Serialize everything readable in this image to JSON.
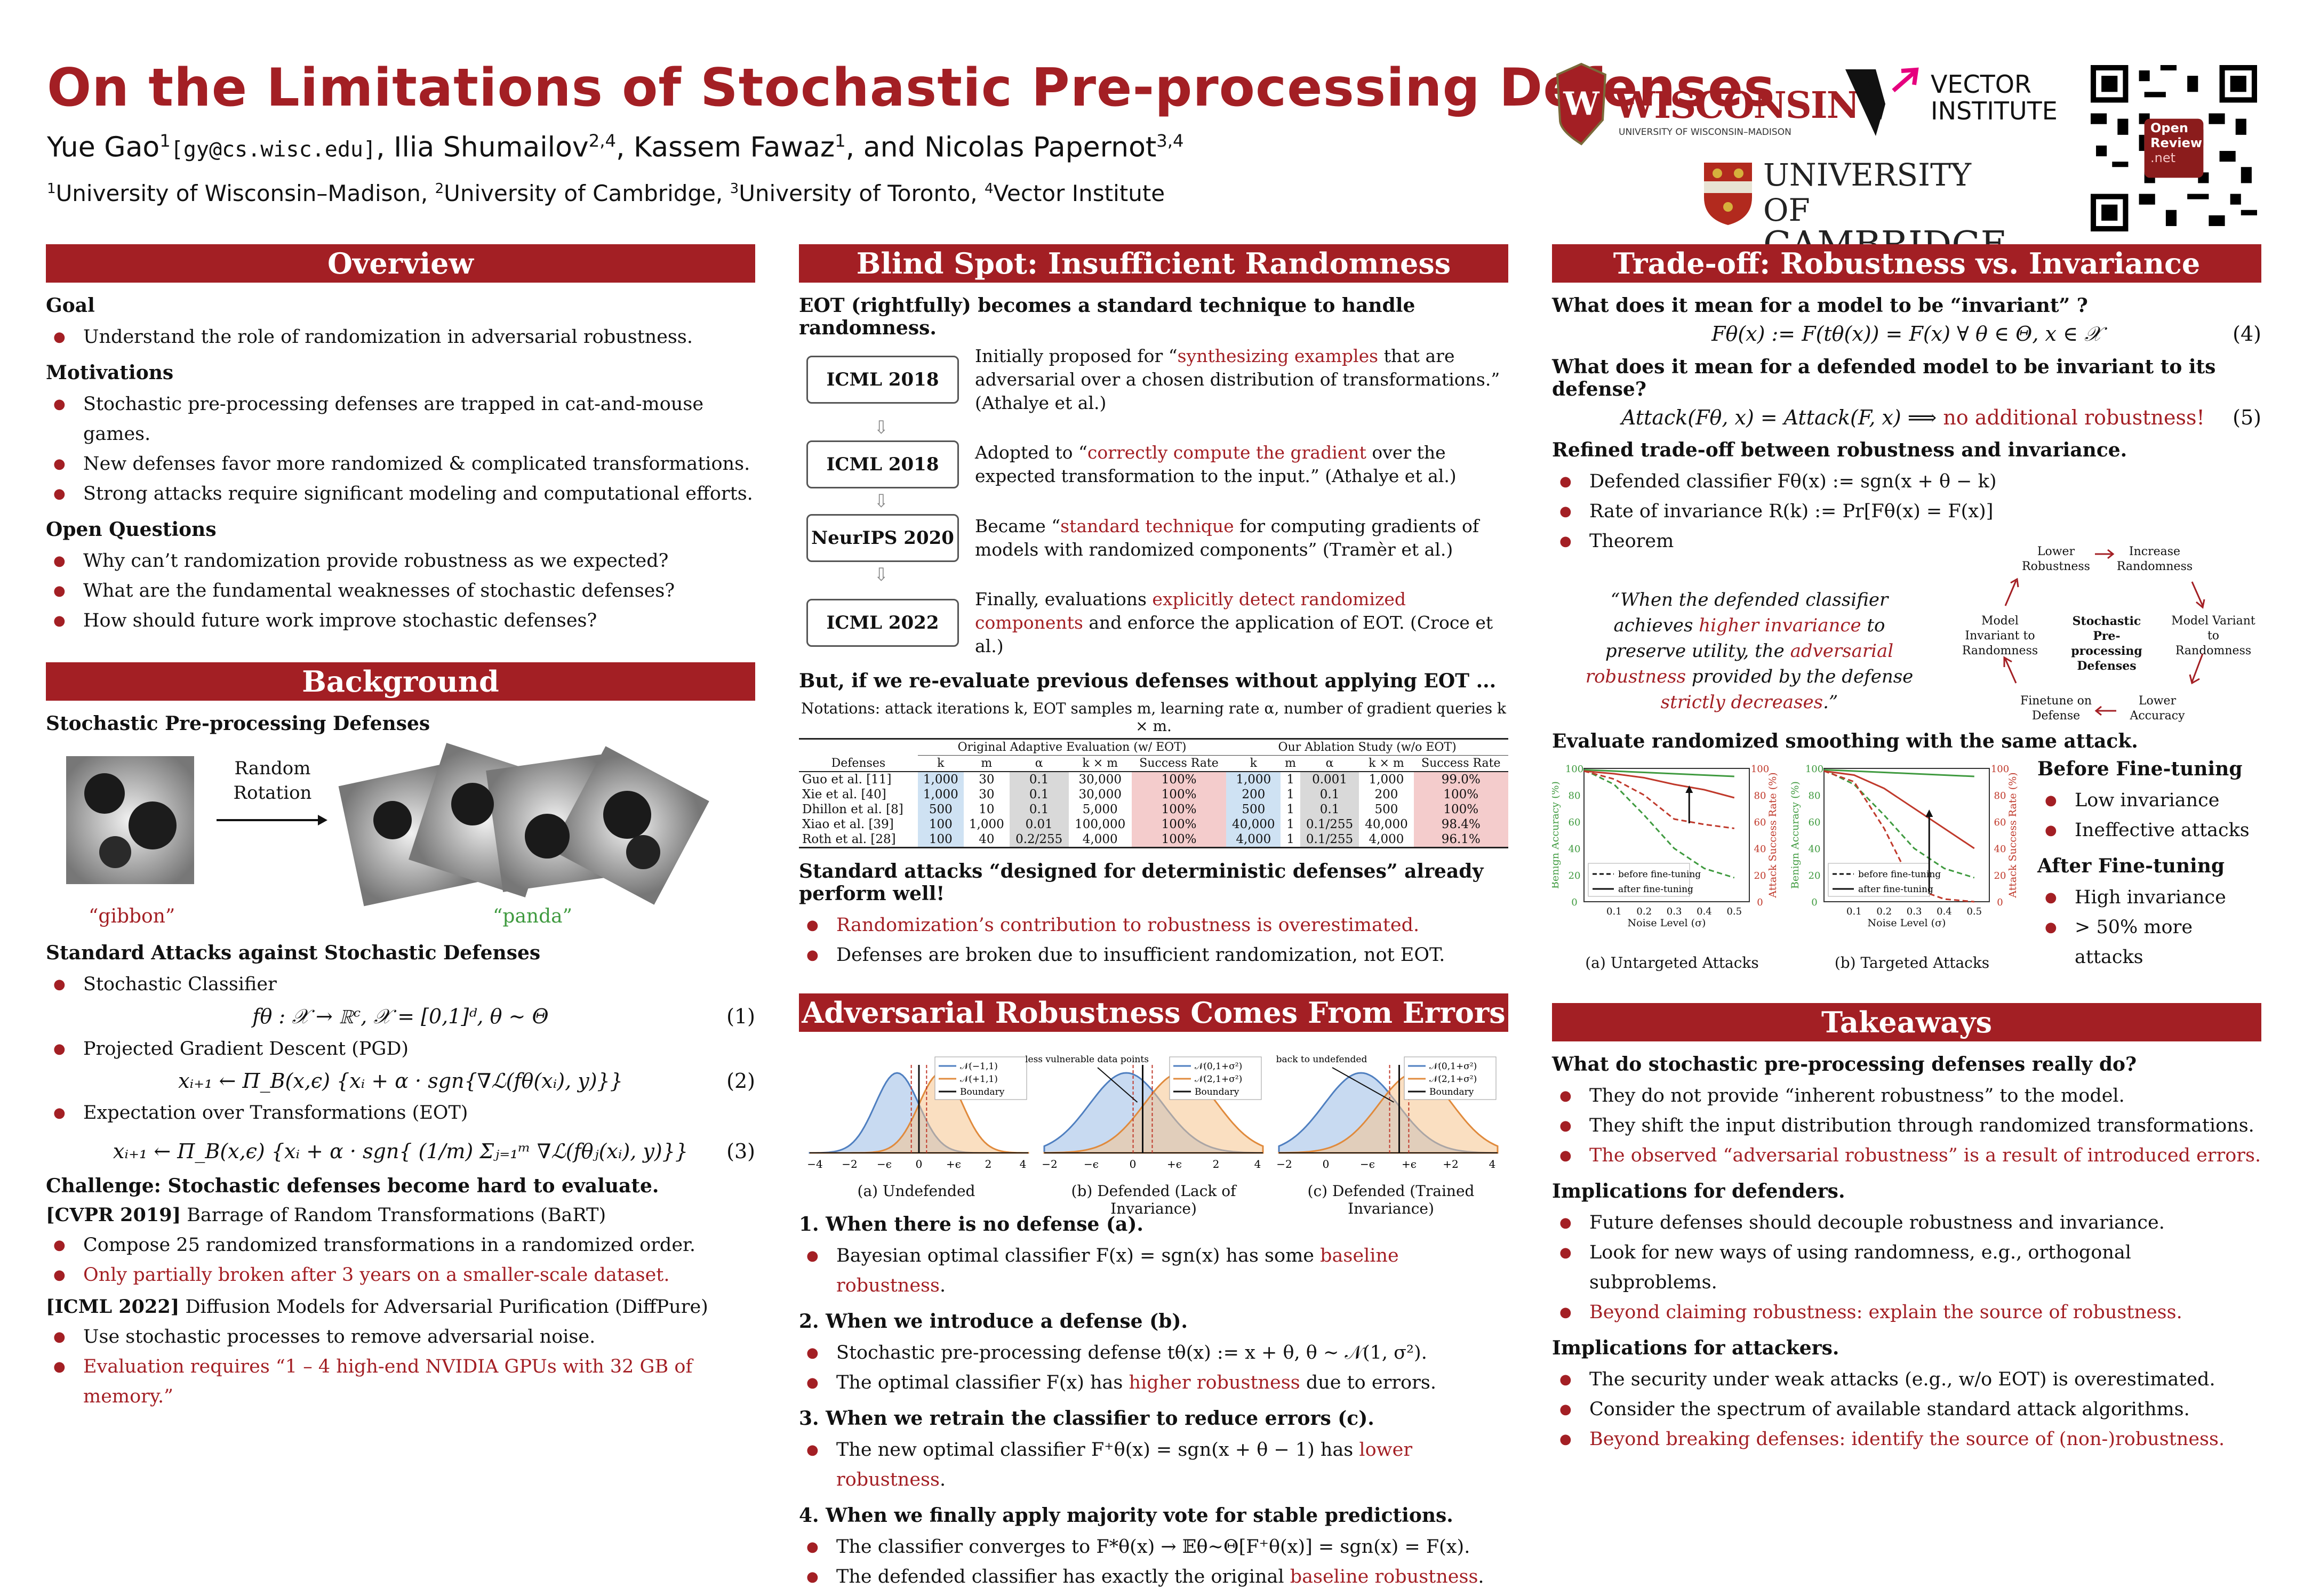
{
  "header": {
    "title": "On the Limitations of Stochastic Pre-processing Defenses",
    "authors": [
      {
        "name": "Yue Gao",
        "sup": "1",
        "email": "[gy@cs.wisc.edu]"
      },
      {
        "name": "Ilia Shumailov",
        "sup": "2,4"
      },
      {
        "name": "Kassem Fawaz",
        "sup": "1"
      },
      {
        "name": "Nicolas Papernot",
        "sup": "3,4"
      }
    ],
    "author_sep": ", ",
    "author_and": "and",
    "affiliations": [
      {
        "sup": "1",
        "name": "University of Wisconsin–Madison"
      },
      {
        "sup": "2",
        "name": "University of Cambridge"
      },
      {
        "sup": "3",
        "name": "University of Toronto"
      },
      {
        "sup": "4",
        "name": "Vector Institute"
      }
    ],
    "logos": {
      "wisconsin": "WISCONSIN",
      "wisconsin_sub": "UNIVERSITY OF WISCONSIN–MADISON",
      "vector_line1": "VECTOR",
      "vector_line2": "INSTITUTE",
      "cambridge_line1": "UNIVERSITY OF",
      "cambridge_line2": "CAMBRIDGE",
      "openreview_line1": "Open",
      "openreview_line2": "Review",
      "openreview_line3": ".net"
    }
  },
  "overview": {
    "title": "Overview",
    "goal_h": "Goal",
    "goal": [
      "Understand the role of randomization in adversarial robustness."
    ],
    "motiv_h": "Motivations",
    "motivations": [
      "Stochastic pre-processing defenses are trapped in cat-and-mouse games.",
      "New defenses favor more randomized & complicated transformations.",
      "Strong attacks require significant modeling and computational efforts."
    ],
    "oq_h": "Open Questions",
    "questions": [
      "Why can’t randomization provide robustness as we expected?",
      "What are the fundamental weaknesses of stochastic defenses?",
      "How should future work improve stochastic defenses?"
    ]
  },
  "background": {
    "title": "Background",
    "spd_h": "Stochastic Pre-processing Defenses",
    "rotation_label": "Random Rotation",
    "gibbon": "“gibbon”",
    "panda": "“panda”",
    "attacks_h": "Standard Attacks against Stochastic Defenses",
    "items": [
      "Stochastic Classifier",
      "Projected Gradient Descent (PGD)",
      "Expectation over Transformations (EOT)"
    ],
    "eq1": "fθ : 𝒳 → ℝᶜ, 𝒳 = [0,1]ᵈ, θ ∼ Θ",
    "eq2": "xᵢ₊₁ ← Π_B(x,ϵ) {xᵢ + α · sgn{∇ℒ(fθ(xᵢ), y)}}",
    "eq3": "xᵢ₊₁ ← Π_B(x,ϵ) {xᵢ + α · sgn{ (1/m) Σⱼ₌₁ᵐ ∇ℒ(fθⱼ(xᵢ), y)}}",
    "eqn": [
      "(1)",
      "(2)",
      "(3)"
    ],
    "challenge": "Challenge: Stochastic defenses become hard to evaluate.",
    "cvpr_tag": "[CVPR 2019]",
    "cvpr_name": "Barrage of Random Transformations (BaRT)",
    "cvpr_items": [
      "Compose 25 randomized transformations in a randomized order."
    ],
    "cvpr_red": "Only partially broken after 3 years on a smaller-scale dataset.",
    "icml_tag": "[ICML 2022]",
    "icml_name": "Diffusion Models for Adversarial Purification (DiffPure)",
    "icml_items": [
      "Use stochastic processes to remove adversarial noise."
    ],
    "icml_red": "Evaluation requires “1 – 4 high-end NVIDIA GPUs with 32 GB of memory.”"
  },
  "blindspot": {
    "title": "Blind Spot: Insufficient Randomness",
    "intro": "EOT (rightfully) becomes a standard technique to handle randomness.",
    "timeline": [
      {
        "venue": "ICML 2018",
        "pre": "Initially proposed for “",
        "red": "synthesizing examples",
        "post": " that are adversarial over a chosen distribution of transformations.” (Athalye et al.)"
      },
      {
        "venue": "ICML 2018",
        "pre": "Adopted to “",
        "red": "correctly compute the gradient",
        "post": " over the expected transformation to the input.” (Athalye et al.)"
      },
      {
        "venue": "NeurIPS 2020",
        "pre": "Became “",
        "red": "standard technique",
        "post": " for computing gradients of models with randomized components” (Tramèr et al.)"
      },
      {
        "venue": "ICML 2022",
        "pre": "Finally, evaluations ",
        "red": "explicitly detect randomized components",
        "post": " and enforce the application of EOT. (Croce et al.)"
      }
    ],
    "reeval": "But, if we re-evaluate previous defenses without applying EOT ...",
    "notation": "Notations: attack iterations k, EOT samples m, learning rate α, number of gradient queries k × m.",
    "table": {
      "group1": "Original Adaptive Evaluation (w/ EOT)",
      "group2": "Our Ablation Study (w/o EOT)",
      "cols": [
        "Defenses",
        "k",
        "m",
        "α",
        "k × m",
        "Success Rate",
        "k",
        "m",
        "α",
        "k × m",
        "Success Rate"
      ],
      "rows": [
        [
          "Guo et al. [11]",
          "1,000",
          "30",
          "0.1",
          "30,000",
          "100%",
          "1,000",
          "1",
          "0.001",
          "1,000",
          "99.0%"
        ],
        [
          "Xie et al. [40]",
          "1,000",
          "30",
          "0.1",
          "30,000",
          "100%",
          "200",
          "1",
          "0.1",
          "200",
          "100%"
        ],
        [
          "Dhillon et al. [8]",
          "500",
          "10",
          "0.1",
          "5,000",
          "100%",
          "500",
          "1",
          "0.1",
          "500",
          "100%"
        ],
        [
          "Xiao et al. [39]",
          "100",
          "1,000",
          "0.01",
          "100,000",
          "100%",
          "40,000",
          "1",
          "0.1/255",
          "40,000",
          "98.4%"
        ],
        [
          "Roth et al. [28]",
          "100",
          "40",
          "0.2/255",
          "4,000",
          "100%",
          "4,000",
          "1",
          "0.1/255",
          "4,000",
          "96.1%"
        ]
      ]
    },
    "standard": "Standard attacks “designed for deterministic defenses” already perform well!",
    "bullets_red": [
      "Randomization’s contribution to robustness is overestimated."
    ],
    "bullets": [
      "Defenses are broken due to insufficient randomization, not EOT."
    ]
  },
  "errors": {
    "title": "Adversarial Robustness Comes From Errors",
    "captions": [
      "(a) Undefended",
      "(b) Defended (Lack of Invariance)",
      "(c) Defended (Trained Invariance)"
    ],
    "legend_a": [
      "𝒩(−1,1)",
      "𝒩(+1,1)",
      "Boundary"
    ],
    "legend_b": [
      "𝒩(0,1+σ²)",
      "𝒩(2,1+σ²)",
      "Boundary"
    ],
    "legend_c": [
      "𝒩(0,1+σ²)",
      "𝒩(2,1+σ²)",
      "Boundary"
    ],
    "annot_b": "less vulnerable data points",
    "annot_c": "back to undefended",
    "ticks_a": [
      "−4",
      "−2",
      "−ϵ",
      "0",
      "+ϵ",
      "2",
      "4"
    ],
    "ticks_b": [
      "−2",
      "−ϵ",
      "0",
      "+ϵ",
      "2",
      "4"
    ],
    "ticks_c": [
      "−2",
      "0",
      "−ϵ",
      "+ϵ",
      "+2",
      "4"
    ],
    "steps": [
      {
        "h": "1. When there is no defense (a).",
        "items": [
          {
            "pre": "Bayesian optimal classifier F(x) = sgn(x) has some ",
            "red": "baseline robustness",
            "post": "."
          }
        ]
      },
      {
        "h": "2. When we introduce a defense (b).",
        "items": [
          {
            "pre": "Stochastic pre-processing defense tθ(x) := x + θ,  θ ∼ 𝒩(1, σ²).",
            "red": "",
            "post": ""
          },
          {
            "pre": "The optimal classifier F(x) has ",
            "red": "higher robustness",
            "post": " due to errors."
          }
        ]
      },
      {
        "h": "3. When we retrain the classifier to reduce errors (c).",
        "items": [
          {
            "pre": "The new optimal classifier F⁺θ(x) = sgn(x + θ − 1) has ",
            "red": "lower robustness",
            "post": "."
          }
        ]
      },
      {
        "h": "4. When we finally apply majority vote for stable predictions.",
        "items": [
          {
            "pre": "The classifier converges to F*θ(x) → 𝔼θ∼Θ[F⁺θ(x)] = sgn(x) = F(x).",
            "red": "",
            "post": ""
          },
          {
            "pre": "The defended classifier has exactly the original ",
            "red": "baseline robustness",
            "post": "."
          }
        ]
      }
    ]
  },
  "tradeoff": {
    "title": "Trade-off: Robustness vs. Invariance",
    "q1": "What does it mean for a model to be “invariant” ?",
    "eq4": "Fθ(x) := F(tθ(x)) = F(x)   ∀ θ ∈ Θ, x ∈ 𝒳",
    "eq4n": "(4)",
    "q2": "What does it mean for a defended model to be invariant to its defense?",
    "eq5": "Attack(Fθ, x) = Attack(F, x)   ⟹",
    "eq5_red": "no additional robustness!",
    "eq5n": "(5)",
    "refined": "Refined trade-off between robustness and invariance.",
    "items": [
      "Defended classifier Fθ(x) := sgn(x + θ − k)",
      "Rate of invariance R(k) := Pr[Fθ(x) = F(x)]",
      "Theorem"
    ],
    "quote_pre": "“When the defended classifier achieves ",
    "quote_red1": "higher invariance",
    "quote_mid1": " to preserve utility, the ",
    "quote_red2": "adversarial robustness",
    "quote_mid2": " provided by the defense ",
    "quote_red3": "strictly decreases",
    "quote_post": ".”",
    "cycle": {
      "center": "Stochastic Pre-processing Defenses",
      "nodes": [
        "Lower Robustness",
        "Increase Randomness",
        "Model Variant to Randomness",
        "Lower Accuracy",
        "Finetune on Defense",
        "Model Invariant to Randomness"
      ]
    },
    "smooth_h": "Evaluate randomized smoothing with the same attack.",
    "plot_ylabel_left": "Benign Accuracy (%)",
    "plot_ylabel_right": "Attack Success Rate (%)",
    "plot_xlabel": "Noise Level (σ)",
    "plot_legend": [
      "before fine-tuning",
      "after fine-tuning"
    ],
    "plot_captions": [
      "(a) Untargeted Attacks",
      "(b) Targeted Attacks"
    ],
    "before_h": "Before Fine-tuning",
    "before": [
      "Low invariance",
      "Ineffective attacks"
    ],
    "after_h": "After Fine-tuning",
    "after": [
      "High invariance",
      "> 50% more attacks"
    ]
  },
  "chart_data": [
    {
      "type": "line",
      "title": "(a) Untargeted Attacks",
      "xlabel": "Noise Level (σ)",
      "ylabel": "Benign Accuracy (%)",
      "y2label": "Attack Success Rate (%)",
      "x": [
        0.0,
        0.1,
        0.2,
        0.3,
        0.4,
        0.5
      ],
      "xticks": [
        "0.1",
        "0.2",
        "0.3",
        "0.4",
        "0.5"
      ],
      "yticks": [
        "0",
        "20",
        "40",
        "60",
        "80",
        "100"
      ],
      "ylim": [
        0,
        100
      ],
      "series": [
        {
          "name": "before fine-tuning",
          "axis": "accuracy",
          "values": [
            99,
            88,
            65,
            40,
            25,
            18
          ]
        },
        {
          "name": "after fine-tuning",
          "axis": "accuracy",
          "values": [
            99,
            98,
            97,
            96,
            95,
            94
          ]
        },
        {
          "name": "before fine-tuning",
          "axis": "attack",
          "values": [
            98,
            92,
            80,
            62,
            58,
            55
          ]
        },
        {
          "name": "after fine-tuning",
          "axis": "attack",
          "values": [
            98,
            96,
            93,
            88,
            84,
            78
          ]
        }
      ]
    },
    {
      "type": "line",
      "title": "(b) Targeted Attacks",
      "xlabel": "Noise Level (σ)",
      "ylabel": "Benign Accuracy (%)",
      "y2label": "Attack Success Rate (%)",
      "x": [
        0.0,
        0.1,
        0.2,
        0.3,
        0.4,
        0.5
      ],
      "xticks": [
        "0.1",
        "0.2",
        "0.3",
        "0.4",
        "0.5"
      ],
      "yticks": [
        "0",
        "20",
        "40",
        "60",
        "80",
        "100"
      ],
      "ylim": [
        0,
        100
      ],
      "series": [
        {
          "name": "before fine-tuning",
          "axis": "accuracy",
          "values": [
            99,
            88,
            65,
            40,
            25,
            18
          ]
        },
        {
          "name": "after fine-tuning",
          "axis": "accuracy",
          "values": [
            99,
            98,
            97,
            96,
            95,
            94
          ]
        },
        {
          "name": "before fine-tuning",
          "axis": "attack",
          "values": [
            98,
            90,
            55,
            10,
            2,
            0
          ]
        },
        {
          "name": "after fine-tuning",
          "axis": "attack",
          "values": [
            98,
            95,
            85,
            70,
            55,
            40
          ]
        }
      ]
    }
  ],
  "takeaways": {
    "title": "Takeaways",
    "q": "What do stochastic pre-processing defenses really do?",
    "items": [
      "They do not provide “inherent robustness” to the model.",
      "They shift the input distribution through randomized transformations."
    ],
    "items_red": [
      "The observed “adversarial robustness” is a result of introduced errors."
    ],
    "def_h": "Implications for defenders.",
    "def": [
      "Future defenses should decouple robustness and invariance.",
      "Look for new ways of using randomness, e.g., orthogonal subproblems."
    ],
    "def_red": [
      "Beyond claiming robustness: explain the source of robustness."
    ],
    "att_h": "Implications for attackers.",
    "att": [
      "The security under weak attacks (e.g., w/o EOT) is overestimated.",
      "Consider the spectrum of available standard attack algorithms."
    ],
    "att_red": [
      "Beyond breaking defenses: identify the source of (non-)robustness."
    ]
  }
}
